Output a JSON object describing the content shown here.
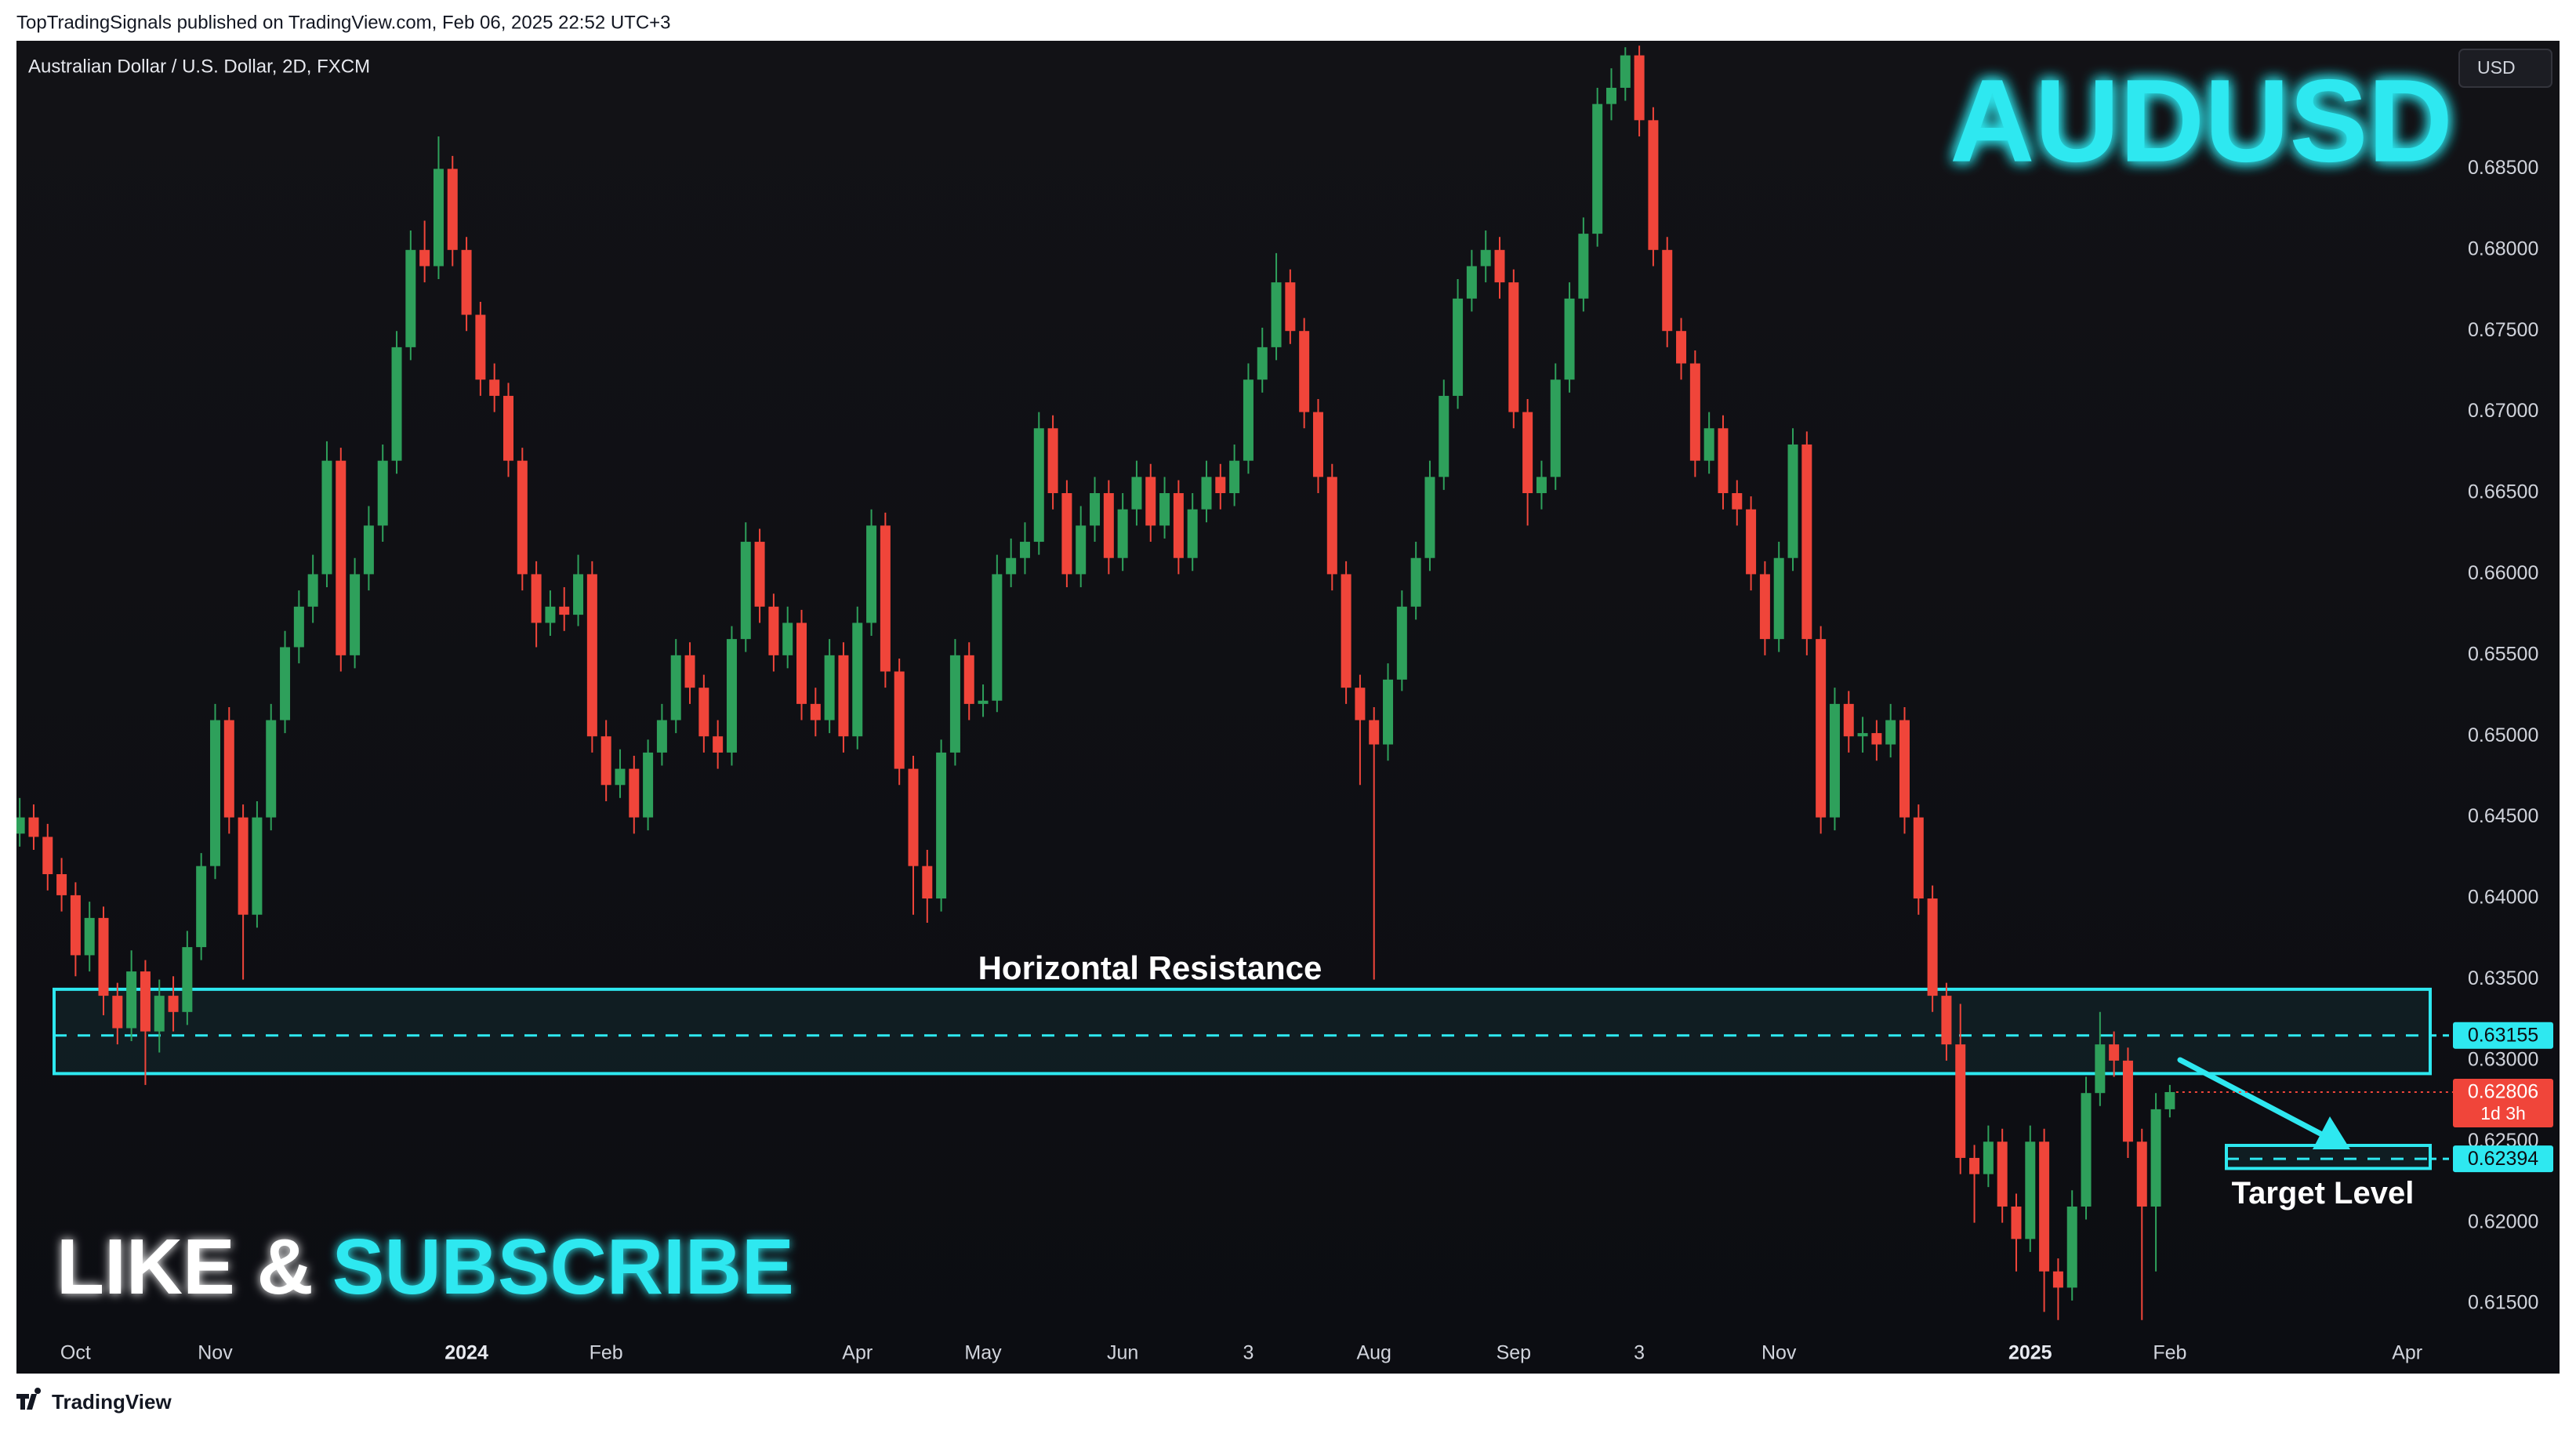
{
  "header": "TopTradingSignals published on TradingView.com, Feb 06, 2025 22:52 UTC+3",
  "footer": "TradingView",
  "chart_data": {
    "type": "candlestick",
    "symbol_info": "Australian Dollar / U.S. Dollar, 2D, FXCM",
    "currency": "USD",
    "title": "AUDUSD",
    "cta": [
      "LIKE &",
      "SUBSCRIBE"
    ],
    "up_color": "#2ea05b",
    "down_color": "#f0453a",
    "accent_color": "#2ee8f0",
    "ylim": [
      0.6107,
      0.6929
    ],
    "yticks": [
      {
        "value": 0.615,
        "label": "0.61500"
      },
      {
        "value": 0.62,
        "label": "0.62000"
      },
      {
        "value": 0.625,
        "label": "0.62500"
      },
      {
        "value": 0.63,
        "label": "0.63000"
      },
      {
        "value": 0.635,
        "label": "0.63500"
      },
      {
        "value": 0.64,
        "label": "0.64000"
      },
      {
        "value": 0.645,
        "label": "0.64500"
      },
      {
        "value": 0.65,
        "label": "0.65000"
      },
      {
        "value": 0.655,
        "label": "0.65500"
      },
      {
        "value": 0.66,
        "label": "0.66000"
      },
      {
        "value": 0.665,
        "label": "0.66500"
      },
      {
        "value": 0.67,
        "label": "0.67000"
      },
      {
        "value": 0.675,
        "label": "0.67500"
      },
      {
        "value": 0.68,
        "label": "0.68000"
      },
      {
        "value": 0.685,
        "label": "0.68500"
      }
    ],
    "categories": [
      null,
      null,
      null,
      null,
      "Oct",
      null,
      null,
      null,
      null,
      null,
      null,
      null,
      null,
      null,
      "Nov",
      null,
      null,
      null,
      null,
      null,
      null,
      null,
      null,
      null,
      null,
      null,
      null,
      null,
      null,
      null,
      null,
      null,
      "2024",
      null,
      null,
      null,
      null,
      null,
      null,
      null,
      null,
      null,
      "Feb",
      null,
      null,
      null,
      null,
      null,
      null,
      null,
      null,
      null,
      null,
      null,
      null,
      null,
      null,
      null,
      null,
      null,
      "Apr",
      null,
      null,
      null,
      null,
      null,
      null,
      null,
      null,
      "May",
      null,
      null,
      null,
      null,
      null,
      null,
      null,
      null,
      null,
      "Jun",
      null,
      null,
      null,
      null,
      null,
      null,
      null,
      null,
      "3",
      null,
      null,
      null,
      null,
      null,
      null,
      null,
      null,
      "Aug",
      null,
      null,
      null,
      null,
      null,
      null,
      null,
      null,
      null,
      "Sep",
      null,
      null,
      null,
      null,
      null,
      null,
      null,
      null,
      "3",
      null,
      null,
      null,
      null,
      null,
      null,
      null,
      null,
      null,
      "Nov",
      null,
      null,
      null,
      null,
      null,
      null,
      null,
      null,
      null,
      null,
      null,
      null,
      null,
      null,
      null,
      null,
      null,
      "2025",
      null,
      null,
      null,
      null,
      null,
      null,
      null,
      null,
      null,
      "Feb",
      null,
      null,
      null,
      null,
      null,
      null,
      null,
      null,
      null,
      null,
      null,
      null,
      null,
      null,
      null,
      null,
      "Apr"
    ],
    "values": [
      [
        0.644,
        0.6462,
        0.6432,
        0.645
      ],
      [
        0.645,
        0.6458,
        0.643,
        0.6438
      ],
      [
        0.6438,
        0.6446,
        0.6405,
        0.6415
      ],
      [
        0.6415,
        0.6425,
        0.6392,
        0.6402
      ],
      [
        0.6402,
        0.641,
        0.6352,
        0.6365
      ],
      [
        0.6365,
        0.6398,
        0.6355,
        0.6388
      ],
      [
        0.6388,
        0.6395,
        0.6328,
        0.634
      ],
      [
        0.634,
        0.6348,
        0.631,
        0.632
      ],
      [
        0.632,
        0.6368,
        0.6312,
        0.6355
      ],
      [
        0.6355,
        0.6362,
        0.6285,
        0.6318
      ],
      [
        0.6318,
        0.635,
        0.6305,
        0.634
      ],
      [
        0.634,
        0.6352,
        0.6318,
        0.633
      ],
      [
        0.633,
        0.638,
        0.6322,
        0.637
      ],
      [
        0.637,
        0.6428,
        0.6362,
        0.642
      ],
      [
        0.642,
        0.652,
        0.6412,
        0.651
      ],
      [
        0.651,
        0.6518,
        0.644,
        0.645
      ],
      [
        0.645,
        0.6458,
        0.635,
        0.639
      ],
      [
        0.639,
        0.646,
        0.6382,
        0.645
      ],
      [
        0.645,
        0.652,
        0.6442,
        0.651
      ],
      [
        0.651,
        0.6565,
        0.6502,
        0.6555
      ],
      [
        0.6555,
        0.659,
        0.6545,
        0.658
      ],
      [
        0.658,
        0.6612,
        0.657,
        0.66
      ],
      [
        0.66,
        0.6682,
        0.6592,
        0.667
      ],
      [
        0.667,
        0.6678,
        0.654,
        0.655
      ],
      [
        0.655,
        0.661,
        0.6542,
        0.66
      ],
      [
        0.66,
        0.6642,
        0.659,
        0.663
      ],
      [
        0.663,
        0.668,
        0.662,
        0.667
      ],
      [
        0.667,
        0.675,
        0.6662,
        0.674
      ],
      [
        0.674,
        0.6812,
        0.6732,
        0.68
      ],
      [
        0.68,
        0.6818,
        0.678,
        0.679
      ],
      [
        0.679,
        0.687,
        0.6782,
        0.685
      ],
      [
        0.685,
        0.6858,
        0.679,
        0.68
      ],
      [
        0.68,
        0.6808,
        0.675,
        0.676
      ],
      [
        0.676,
        0.6768,
        0.671,
        0.672
      ],
      [
        0.672,
        0.673,
        0.67,
        0.671
      ],
      [
        0.671,
        0.6718,
        0.666,
        0.667
      ],
      [
        0.667,
        0.6678,
        0.659,
        0.66
      ],
      [
        0.66,
        0.6608,
        0.6555,
        0.657
      ],
      [
        0.657,
        0.659,
        0.6562,
        0.658
      ],
      [
        0.658,
        0.6592,
        0.6565,
        0.6575
      ],
      [
        0.6575,
        0.6612,
        0.6568,
        0.66
      ],
      [
        0.66,
        0.6608,
        0.649,
        0.65
      ],
      [
        0.65,
        0.651,
        0.646,
        0.647
      ],
      [
        0.647,
        0.6492,
        0.6462,
        0.648
      ],
      [
        0.648,
        0.6488,
        0.644,
        0.645
      ],
      [
        0.645,
        0.6498,
        0.6442,
        0.649
      ],
      [
        0.649,
        0.652,
        0.6482,
        0.651
      ],
      [
        0.651,
        0.656,
        0.6502,
        0.655
      ],
      [
        0.655,
        0.6558,
        0.652,
        0.653
      ],
      [
        0.653,
        0.6538,
        0.649,
        0.65
      ],
      [
        0.65,
        0.651,
        0.648,
        0.649
      ],
      [
        0.649,
        0.6568,
        0.6482,
        0.656
      ],
      [
        0.656,
        0.6632,
        0.6552,
        0.662
      ],
      [
        0.662,
        0.6628,
        0.657,
        0.658
      ],
      [
        0.658,
        0.6588,
        0.654,
        0.655
      ],
      [
        0.655,
        0.658,
        0.6542,
        0.657
      ],
      [
        0.657,
        0.6578,
        0.651,
        0.652
      ],
      [
        0.652,
        0.653,
        0.65,
        0.651
      ],
      [
        0.651,
        0.656,
        0.6502,
        0.655
      ],
      [
        0.655,
        0.6558,
        0.649,
        0.65
      ],
      [
        0.65,
        0.658,
        0.6492,
        0.657
      ],
      [
        0.657,
        0.664,
        0.6562,
        0.663
      ],
      [
        0.663,
        0.6638,
        0.653,
        0.654
      ],
      [
        0.654,
        0.6548,
        0.647,
        0.648
      ],
      [
        0.648,
        0.6488,
        0.639,
        0.642
      ],
      [
        0.642,
        0.643,
        0.6385,
        0.64
      ],
      [
        0.64,
        0.6498,
        0.6392,
        0.649
      ],
      [
        0.649,
        0.656,
        0.6482,
        0.655
      ],
      [
        0.655,
        0.6558,
        0.651,
        0.652
      ],
      [
        0.652,
        0.6532,
        0.6512,
        0.6522
      ],
      [
        0.6522,
        0.6612,
        0.6515,
        0.66
      ],
      [
        0.66,
        0.6622,
        0.6592,
        0.661
      ],
      [
        0.661,
        0.6632,
        0.66,
        0.662
      ],
      [
        0.662,
        0.67,
        0.6612,
        0.669
      ],
      [
        0.669,
        0.6698,
        0.664,
        0.665
      ],
      [
        0.665,
        0.6658,
        0.6592,
        0.66
      ],
      [
        0.66,
        0.6642,
        0.6592,
        0.663
      ],
      [
        0.663,
        0.666,
        0.662,
        0.665
      ],
      [
        0.665,
        0.6658,
        0.66,
        0.661
      ],
      [
        0.661,
        0.665,
        0.6602,
        0.664
      ],
      [
        0.664,
        0.667,
        0.663,
        0.666
      ],
      [
        0.666,
        0.6668,
        0.662,
        0.663
      ],
      [
        0.663,
        0.666,
        0.6622,
        0.665
      ],
      [
        0.665,
        0.6658,
        0.66,
        0.661
      ],
      [
        0.661,
        0.665,
        0.6602,
        0.664
      ],
      [
        0.664,
        0.667,
        0.6632,
        0.666
      ],
      [
        0.666,
        0.6668,
        0.664,
        0.665
      ],
      [
        0.665,
        0.668,
        0.6642,
        0.667
      ],
      [
        0.667,
        0.673,
        0.6662,
        0.672
      ],
      [
        0.672,
        0.6752,
        0.6712,
        0.674
      ],
      [
        0.674,
        0.6798,
        0.6732,
        0.678
      ],
      [
        0.678,
        0.6788,
        0.6742,
        0.675
      ],
      [
        0.675,
        0.6758,
        0.669,
        0.67
      ],
      [
        0.67,
        0.6708,
        0.665,
        0.666
      ],
      [
        0.666,
        0.6668,
        0.659,
        0.66
      ],
      [
        0.66,
        0.6608,
        0.652,
        0.653
      ],
      [
        0.653,
        0.6538,
        0.647,
        0.651
      ],
      [
        0.651,
        0.6518,
        0.635,
        0.6495
      ],
      [
        0.6495,
        0.6545,
        0.6485,
        0.6535
      ],
      [
        0.6535,
        0.659,
        0.6528,
        0.658
      ],
      [
        0.658,
        0.662,
        0.6572,
        0.661
      ],
      [
        0.661,
        0.667,
        0.6602,
        0.666
      ],
      [
        0.666,
        0.672,
        0.6652,
        0.671
      ],
      [
        0.671,
        0.6782,
        0.6702,
        0.677
      ],
      [
        0.677,
        0.68,
        0.6762,
        0.679
      ],
      [
        0.679,
        0.6812,
        0.678,
        0.68
      ],
      [
        0.68,
        0.6808,
        0.677,
        0.678
      ],
      [
        0.678,
        0.6788,
        0.669,
        0.67
      ],
      [
        0.67,
        0.6708,
        0.663,
        0.665
      ],
      [
        0.665,
        0.667,
        0.664,
        0.666
      ],
      [
        0.666,
        0.673,
        0.6652,
        0.672
      ],
      [
        0.672,
        0.678,
        0.6712,
        0.677
      ],
      [
        0.677,
        0.682,
        0.6762,
        0.681
      ],
      [
        0.681,
        0.69,
        0.6802,
        0.689
      ],
      [
        0.689,
        0.6912,
        0.688,
        0.69
      ],
      [
        0.69,
        0.6925,
        0.6892,
        0.692
      ],
      [
        0.692,
        0.6926,
        0.687,
        0.688
      ],
      [
        0.688,
        0.6888,
        0.679,
        0.68
      ],
      [
        0.68,
        0.6808,
        0.674,
        0.675
      ],
      [
        0.675,
        0.6758,
        0.672,
        0.673
      ],
      [
        0.673,
        0.6738,
        0.666,
        0.667
      ],
      [
        0.667,
        0.67,
        0.6662,
        0.669
      ],
      [
        0.669,
        0.6698,
        0.664,
        0.665
      ],
      [
        0.665,
        0.6658,
        0.663,
        0.664
      ],
      [
        0.664,
        0.6648,
        0.659,
        0.66
      ],
      [
        0.66,
        0.6608,
        0.655,
        0.656
      ],
      [
        0.656,
        0.662,
        0.6552,
        0.661
      ],
      [
        0.661,
        0.669,
        0.6602,
        0.668
      ],
      [
        0.668,
        0.6688,
        0.655,
        0.656
      ],
      [
        0.656,
        0.6568,
        0.644,
        0.645
      ],
      [
        0.645,
        0.653,
        0.6442,
        0.652
      ],
      [
        0.652,
        0.6528,
        0.649,
        0.65
      ],
      [
        0.65,
        0.6512,
        0.649,
        0.6502
      ],
      [
        0.6502,
        0.651,
        0.6485,
        0.6495
      ],
      [
        0.6495,
        0.652,
        0.6487,
        0.651
      ],
      [
        0.651,
        0.6518,
        0.644,
        0.645
      ],
      [
        0.645,
        0.6458,
        0.639,
        0.64
      ],
      [
        0.64,
        0.6408,
        0.633,
        0.634
      ],
      [
        0.634,
        0.6348,
        0.63,
        0.631
      ],
      [
        0.631,
        0.6335,
        0.623,
        0.624
      ],
      [
        0.624,
        0.6248,
        0.62,
        0.623
      ],
      [
        0.623,
        0.626,
        0.6222,
        0.625
      ],
      [
        0.625,
        0.6258,
        0.62,
        0.621
      ],
      [
        0.621,
        0.6218,
        0.617,
        0.619
      ],
      [
        0.619,
        0.626,
        0.6182,
        0.625
      ],
      [
        0.625,
        0.6258,
        0.6145,
        0.617
      ],
      [
        0.617,
        0.6178,
        0.614,
        0.616
      ],
      [
        0.616,
        0.622,
        0.6152,
        0.621
      ],
      [
        0.621,
        0.629,
        0.6202,
        0.628
      ],
      [
        0.628,
        0.633,
        0.6272,
        0.631
      ],
      [
        0.631,
        0.6318,
        0.629,
        0.63
      ],
      [
        0.63,
        0.6308,
        0.624,
        0.625
      ],
      [
        0.625,
        0.6258,
        0.614,
        0.621
      ],
      [
        0.621,
        0.628,
        0.617,
        0.627
      ],
      [
        0.627,
        0.6285,
        0.6265,
        0.62806
      ],
      null,
      null,
      null,
      null,
      null,
      null,
      null,
      null,
      null,
      null,
      null,
      null,
      null,
      null,
      null,
      null,
      null
    ],
    "countdown": "1d 3h",
    "resistance": {
      "label": "Horizontal Resistance",
      "top": 0.6344,
      "bottom": 0.6292,
      "level": 0.63155
    },
    "target": {
      "label": "Target Level",
      "top": 0.62477,
      "bottom": 0.62335,
      "level": 0.62394
    }
  }
}
